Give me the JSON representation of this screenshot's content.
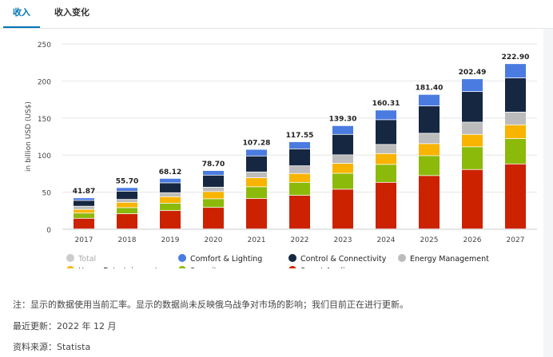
{
  "tabs": [
    {
      "label": "收入",
      "active": true
    },
    {
      "label": "收入变化",
      "active": false
    }
  ],
  "chart_data": {
    "type": "bar",
    "stacked": true,
    "ylabel": "in billion USD (US$)",
    "ylim": [
      0,
      250
    ],
    "yticks": [
      0,
      50,
      100,
      150,
      200,
      250
    ],
    "grid": true,
    "categories": [
      "2017",
      "2018",
      "2019",
      "2020",
      "2021",
      "2022",
      "2023",
      "2024",
      "2025",
      "2026",
      "2027"
    ],
    "totals": [
      41.87,
      55.7,
      68.12,
      78.7,
      107.28,
      117.55,
      139.3,
      160.31,
      181.4,
      202.49,
      222.9
    ],
    "series": [
      {
        "name": "Smart Appliances",
        "color": "#cc2200",
        "values": [
          14.3,
          20.4,
          24.7,
          29.0,
          41.0,
          45.3,
          53.5,
          62.8,
          71.9,
          80.1,
          87.6
        ]
      },
      {
        "name": "Security",
        "color": "#8cba0a",
        "values": [
          7.0,
          8.3,
          10.0,
          11.6,
          15.8,
          17.5,
          21.5,
          24.2,
          26.9,
          30.6,
          34.2
        ]
      },
      {
        "name": "Home Entertainment",
        "color": "#f8b400",
        "values": [
          5.0,
          7.1,
          8.7,
          9.7,
          12.2,
          11.9,
          13.4,
          14.6,
          16.2,
          16.8,
          18.6
        ]
      },
      {
        "name": "Energy Management",
        "color": "#bcbcbc",
        "values": [
          4.3,
          4.0,
          5.4,
          6.0,
          7.8,
          10.4,
          11.5,
          12.3,
          14.0,
          16.5,
          17.2
        ]
      },
      {
        "name": "Control & Connectivity",
        "color": "#162742",
        "values": [
          7.8,
          11.1,
          13.3,
          16.2,
          21.6,
          22.9,
          27.6,
          33.4,
          36.9,
          41.3,
          46.1
        ]
      },
      {
        "name": "Comfort & Lighting",
        "color": "#4a7be0",
        "values": [
          3.47,
          4.8,
          6.02,
          6.2,
          8.88,
          9.55,
          11.8,
          13.01,
          15.5,
          17.19,
          19.2
        ]
      }
    ],
    "legend": [
      {
        "name": "Total",
        "color": "#cccccc"
      },
      {
        "name": "Comfort & Lighting",
        "color": "#4a7be0"
      },
      {
        "name": "Control & Connectivity",
        "color": "#162742"
      },
      {
        "name": "Energy Management",
        "color": "#bcbcbc"
      },
      {
        "name": "Home Entertainment",
        "color": "#f8b400"
      },
      {
        "name": "Security",
        "color": "#8cba0a"
      },
      {
        "name": "Smart Appliances",
        "color": "#cc2200"
      }
    ]
  },
  "notes": {
    "note": "注：显示的数据使用当前汇率。显示的数据尚未反映俄乌战争对市场的影响；我们目前正在进行更新。",
    "updated": "最近更新：2022 年 12 月",
    "source": "资料来源：Statista"
  }
}
